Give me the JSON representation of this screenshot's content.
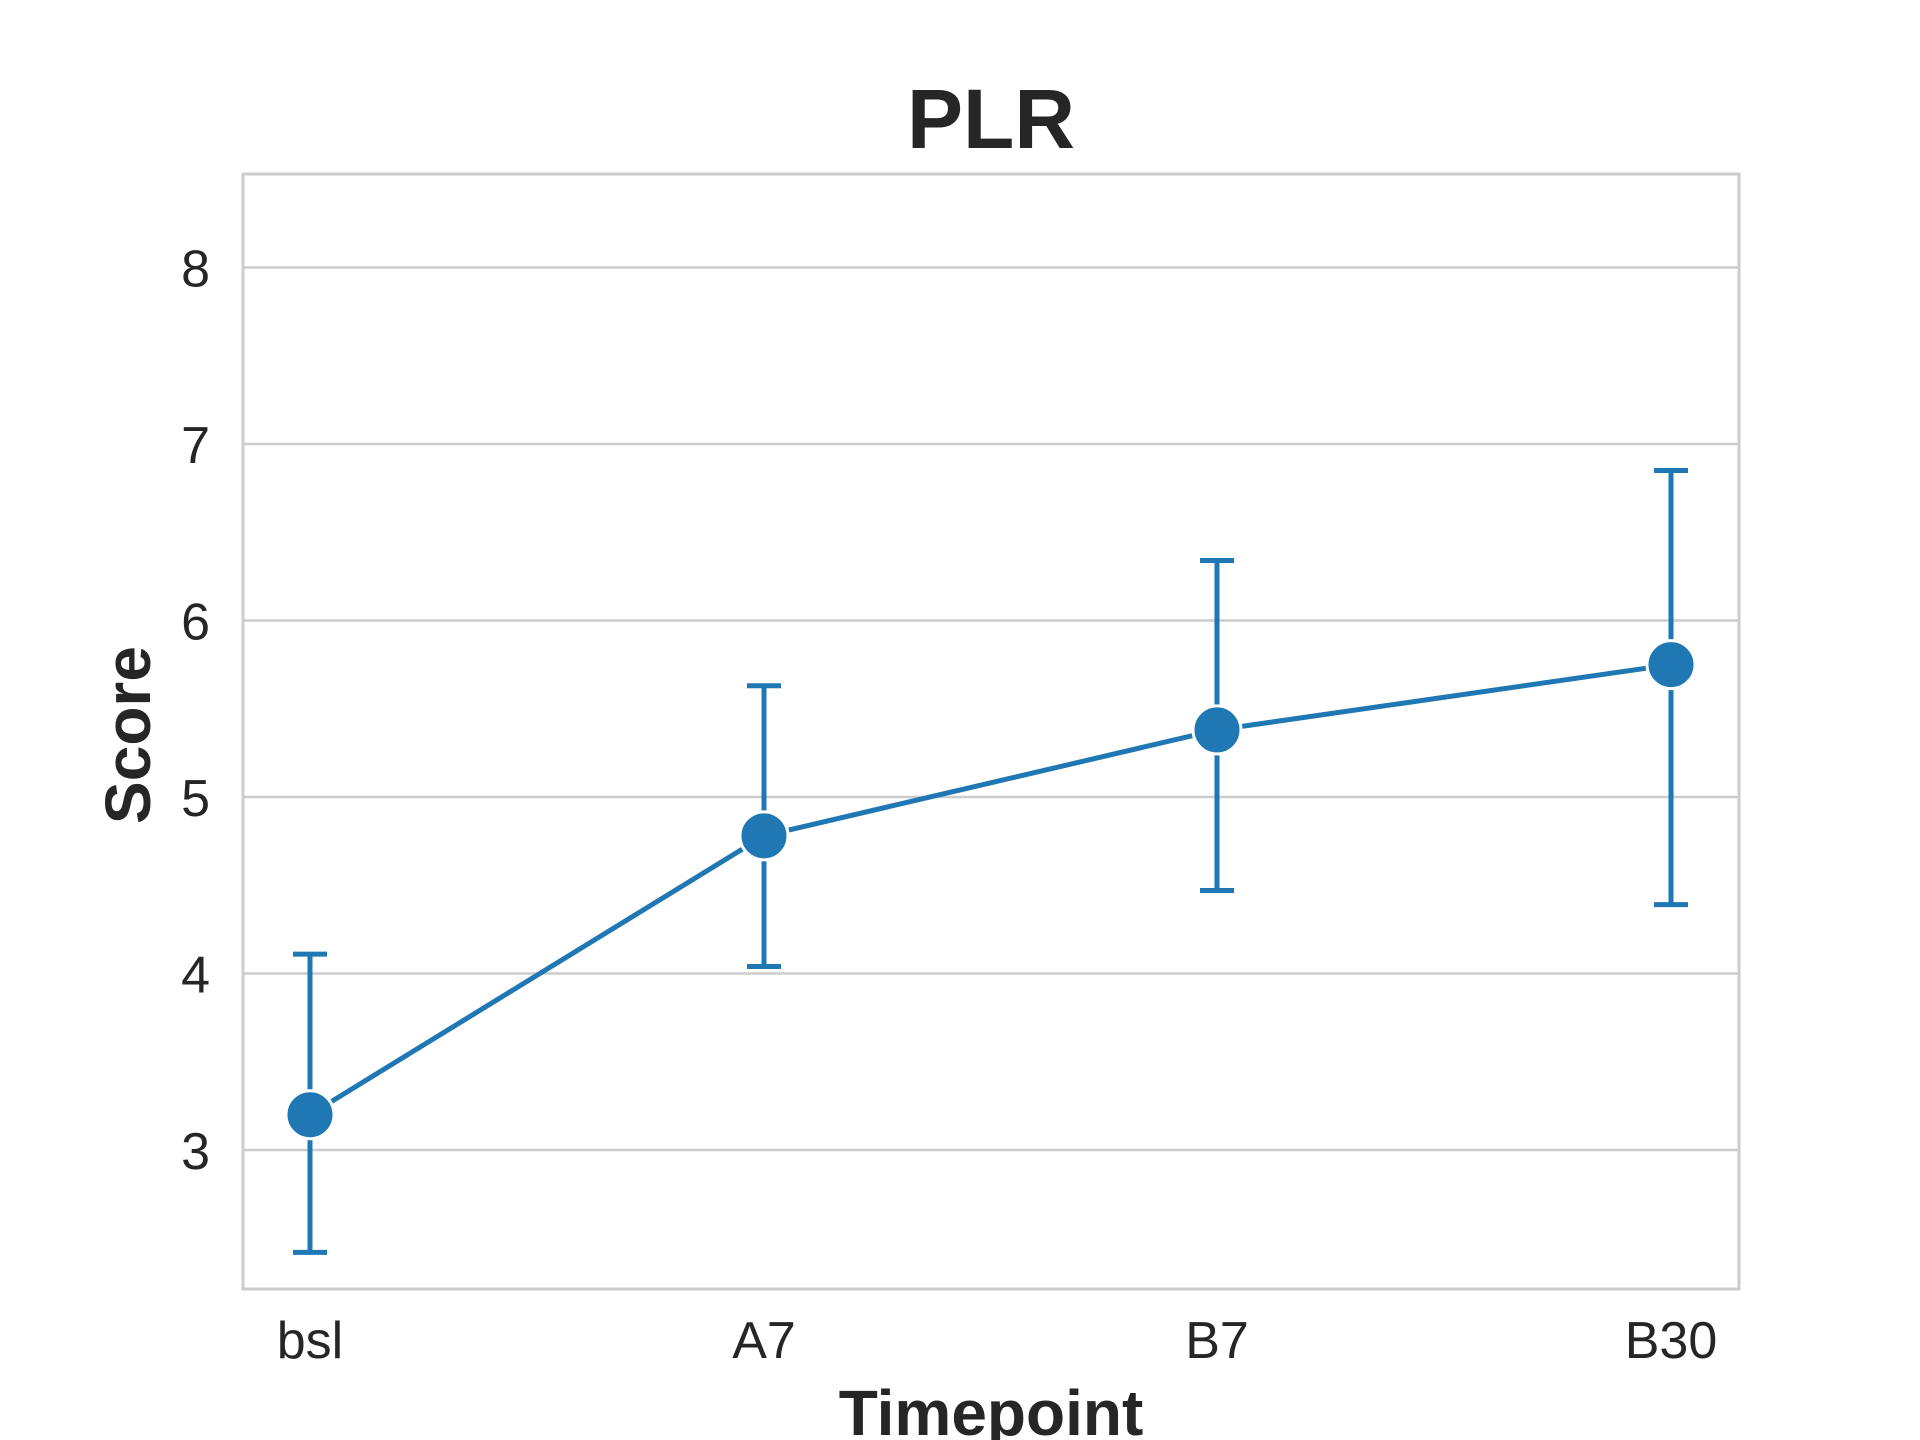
{
  "chart_data": {
    "type": "line",
    "title": "PLR",
    "xlabel": "Timepoint",
    "ylabel": "Score",
    "categories": [
      "bsl",
      "A7",
      "B7",
      "B30"
    ],
    "series": [
      {
        "values": [
          3.2,
          4.78,
          5.38,
          5.75
        ],
        "error_low": [
          2.42,
          4.04,
          4.47,
          4.39
        ],
        "error_high": [
          4.11,
          5.63,
          6.34,
          6.85
        ],
        "color": "#1f77b4"
      }
    ],
    "ylim": [
      2.2,
      8.5
    ],
    "yticks": [
      "3",
      "4",
      "5",
      "6",
      "7",
      "8"
    ],
    "grid": true,
    "legend": "none"
  }
}
